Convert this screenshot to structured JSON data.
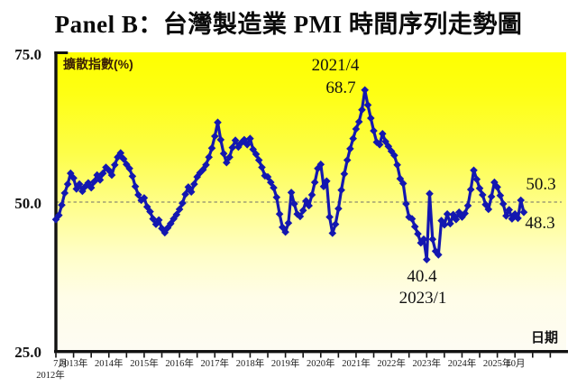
{
  "title": "Panel B：台灣製造業 PMI 時間序列走勢圖",
  "y_axis": {
    "labels": [
      "75.0",
      "50.0",
      "25.0"
    ]
  },
  "plot": {
    "unit_label": "擴散指數(%)",
    "x_axis_title": "日期"
  },
  "annotations": {
    "peak_date": "2021/4",
    "peak_value": "68.7",
    "trough_value": "40.4",
    "trough_date": "2023/1",
    "latest_prev_value": "50.3",
    "latest_value": "48.3"
  },
  "x_axis": {
    "first_month_label": "7月",
    "first_year_label": "2012年",
    "year_labels": [
      "2013年",
      "2014年",
      "2015年",
      "2016年",
      "2017年",
      "2018年",
      "2019年",
      "2020年",
      "2021年",
      "2022年",
      "2023年",
      "2024年",
      "2025年"
    ],
    "last_month_label": "10月"
  },
  "colors": {
    "line": "#1317b0",
    "axis": "#111111",
    "reference_line": "#8c8c72",
    "background_top": "#feff00",
    "background_bottom": "#fdfcf3"
  },
  "chart_data": {
    "type": "line",
    "title": "Panel B：台灣製造業 PMI 時間序列走勢圖",
    "ylabel": "擴散指數(%)",
    "xlabel": "日期",
    "ylim": [
      25,
      75
    ],
    "ytick_labels": [
      75.0,
      50.0,
      25.0
    ],
    "reference_line": 50.0,
    "x_start": "2012-07",
    "x_end": "2025-10",
    "frequency": "monthly",
    "legend": "none",
    "grid": "dashed line at 50 only",
    "annotated_points": [
      {
        "label": "2021/4",
        "value": 68.7
      },
      {
        "label": "2023/1",
        "value": 40.4
      },
      {
        "label": "2025/9",
        "value": 50.3
      },
      {
        "label": "2025/10",
        "value": 48.3
      }
    ],
    "values": [
      47.1,
      47.8,
      49.5,
      51.5,
      53.0,
      54.8,
      54.0,
      52.2,
      53.0,
      51.8,
      52.6,
      53.2,
      52.4,
      53.4,
      54.5,
      53.7,
      54.8,
      55.8,
      55.3,
      54.5,
      56.2,
      57.5,
      58.2,
      57.2,
      56.3,
      55.6,
      54.3,
      52.6,
      51.2,
      50.3,
      50.7,
      49.2,
      48.4,
      47.2,
      46.3,
      47.0,
      45.6,
      44.9,
      45.7,
      46.4,
      47.2,
      47.9,
      48.8,
      49.8,
      51.3,
      52.5,
      51.7,
      53.0,
      54.2,
      54.9,
      55.4,
      56.2,
      57.5,
      59.0,
      61.0,
      63.3,
      60.4,
      58.1,
      56.6,
      57.5,
      59.1,
      60.3,
      59.2,
      59.9,
      60.4,
      59.6,
      60.6,
      58.8,
      58.0,
      57.0,
      55.8,
      54.4,
      54.2,
      53.3,
      52.4,
      50.8,
      48.0,
      45.8,
      45.0,
      46.5,
      51.6,
      49.7,
      48.0,
      47.6,
      48.6,
      50.2,
      49.4,
      51.2,
      53.3,
      55.6,
      56.3,
      52.6,
      53.5,
      47.5,
      44.8,
      46.3,
      48.9,
      52.0,
      54.7,
      57.0,
      58.9,
      60.6,
      62.2,
      63.4,
      65.4,
      68.7,
      66.2,
      64.0,
      61.9,
      60.0,
      59.6,
      61.4,
      60.1,
      59.3,
      58.5,
      57.8,
      56.2,
      53.9,
      53.1,
      49.7,
      47.5,
      47.2,
      45.9,
      44.7,
      43.2,
      43.8,
      40.4,
      51.4,
      43.8,
      41.8,
      41.2,
      46.9,
      46.2,
      48.0,
      46.4,
      47.9,
      47.1,
      48.3,
      47.5,
      48.1,
      49.4,
      52.1,
      55.3,
      53.8,
      52.3,
      51.2,
      49.6,
      48.8,
      50.9,
      53.3,
      52.5,
      51.1,
      49.7,
      47.7,
      48.7,
      47.2,
      48.0,
      47.3,
      50.3,
      48.3
    ]
  }
}
